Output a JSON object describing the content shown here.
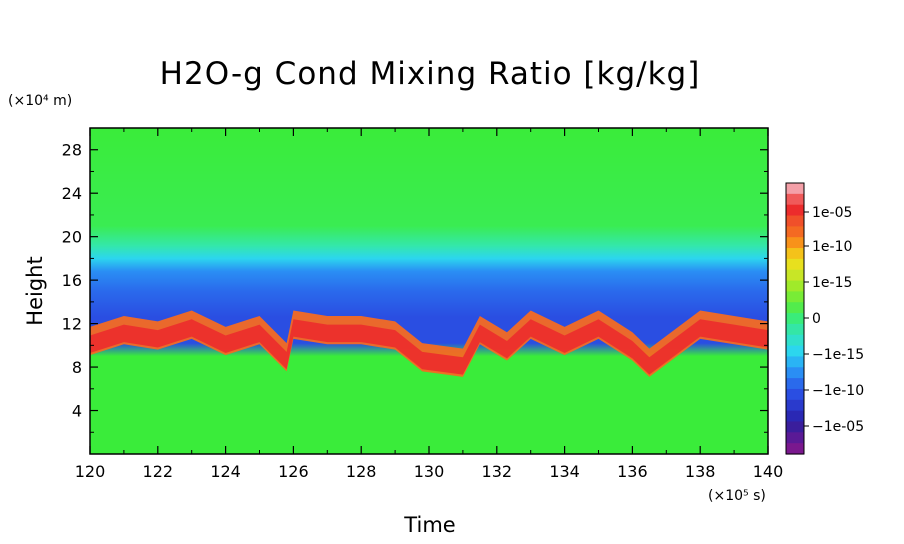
{
  "chart_data": {
    "type": "heatmap",
    "title": "H2O-g Cond Mixing Ratio [kg/kg]",
    "xlabel": "Time",
    "ylabel": "Height",
    "x_unit": "(×10⁵ s)",
    "y_unit": "(×10⁴ m)",
    "xlim": [
      120,
      140
    ],
    "ylim": [
      0,
      30
    ],
    "x_ticks": [
      "120",
      "122",
      "124",
      "126",
      "128",
      "130",
      "132",
      "134",
      "136",
      "138",
      "140"
    ],
    "y_ticks": [
      "4",
      "8",
      "12",
      "16",
      "20",
      "24",
      "28"
    ],
    "colorbar": {
      "labels": [
        "1e-05",
        "1e-10",
        "1e-15",
        "0",
        "−1e-15",
        "−1e-10",
        "−1e-05"
      ],
      "colors": [
        "#f4a0a8",
        "#f05a5a",
        "#ec2c2c",
        "#f0502a",
        "#f46a22",
        "#f8921a",
        "#f4c21a",
        "#e8e01e",
        "#c8e626",
        "#a0ea2a",
        "#78ec36",
        "#52ec4c",
        "#3aec7a",
        "#34e6a6",
        "#30e0cc",
        "#2cd6ee",
        "#2ab4f4",
        "#2a8ef4",
        "#2a6aec",
        "#2a4ee2",
        "#2a3acc",
        "#2a28b4",
        "#3a1e9c",
        "#5a1a96",
        "#7a188e"
      ]
    },
    "description_series": {
      "positive_layer_center_height": [
        [
          120,
          10.5
        ],
        [
          121,
          11.5
        ],
        [
          122,
          11.0
        ],
        [
          123,
          12.0
        ],
        [
          124,
          10.5
        ],
        [
          125,
          11.5
        ],
        [
          125.8,
          9.0
        ],
        [
          126,
          12.0
        ],
        [
          127,
          11.5
        ],
        [
          128,
          11.5
        ],
        [
          129,
          11.0
        ],
        [
          129.8,
          9.0
        ],
        [
          131,
          8.5
        ],
        [
          131.5,
          11.5
        ],
        [
          132.3,
          10.0
        ],
        [
          133,
          12.0
        ],
        [
          134,
          10.5
        ],
        [
          135,
          12.0
        ],
        [
          136,
          10.0
        ],
        [
          136.5,
          8.5
        ],
        [
          138,
          12.0
        ],
        [
          139,
          11.5
        ],
        [
          140,
          11.0
        ]
      ]
    }
  }
}
